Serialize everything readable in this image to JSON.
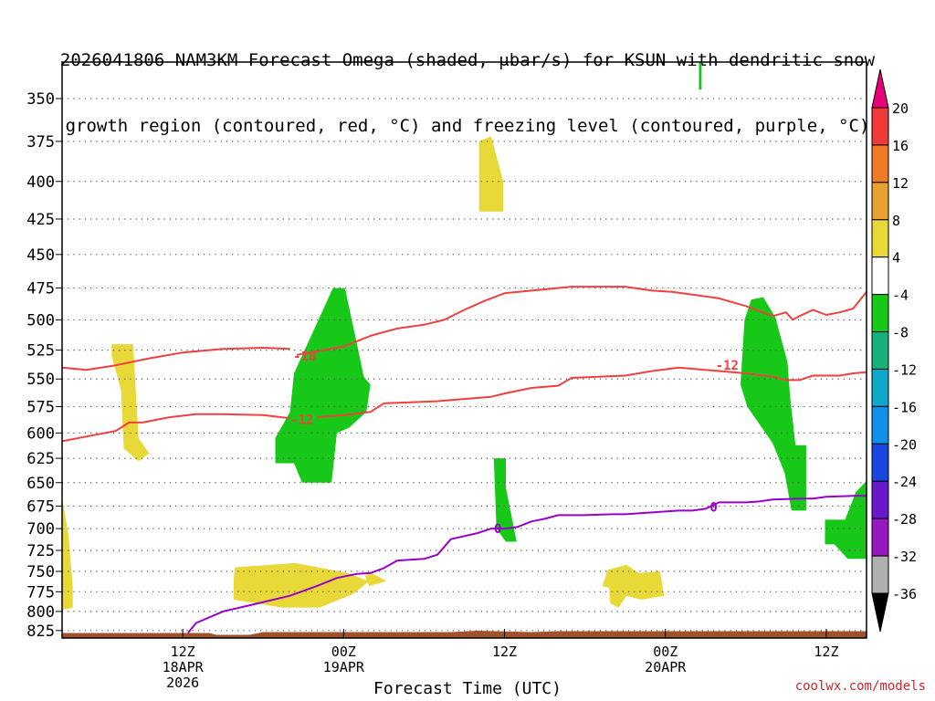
{
  "title": {
    "line1": "2026041806 NAM3KM Forecast Omega (shaded, μbar/s) for KSUN with dendritic snow",
    "line2": "growth region (contoured, red, °C) and freezing level (contoured, purple, °C)"
  },
  "footer": "coolwx.com/models",
  "chart_data": {
    "type": "heatmap",
    "xlabel": "Forecast Time (UTC)",
    "x_range_hours": [
      -9,
      51
    ],
    "y_range_hpa": [
      330,
      835
    ],
    "y_scale": "log-pressure (inverted)",
    "grid": true,
    "y_ticks": [
      350,
      375,
      400,
      425,
      450,
      475,
      500,
      525,
      550,
      575,
      600,
      625,
      650,
      675,
      700,
      725,
      750,
      775,
      800,
      825
    ],
    "x_ticks": [
      {
        "hour": 0,
        "lines": [
          "12Z",
          "18APR",
          "2026"
        ]
      },
      {
        "hour": 12,
        "lines": [
          "00Z",
          "19APR"
        ]
      },
      {
        "hour": 24,
        "lines": [
          "12Z"
        ]
      },
      {
        "hour": 36,
        "lines": [
          "00Z",
          "20APR"
        ]
      },
      {
        "hour": 48,
        "lines": [
          "12Z"
        ]
      }
    ],
    "colorbar": {
      "labels": [
        "20",
        "16",
        "12",
        "8",
        "4",
        "-4",
        "-8",
        "-12",
        "-16",
        "-20",
        "-24",
        "-28",
        "-32",
        "-36"
      ],
      "colors": [
        "#e8007a",
        "#f03a3a",
        "#f07a28",
        "#e8a030",
        "#e8d838",
        "#ffffff",
        "#18c818",
        "#18b07a",
        "#10a8c8",
        "#1090e8",
        "#1848e0",
        "#6818c8",
        "#9818c0",
        "#b0b0b0",
        "#000000"
      ]
    },
    "omega_regions": [
      {
        "name": "rising",
        "color": "#18c818",
        "points": [
          [
            11.2,
            475
          ],
          [
            12.1,
            475
          ],
          [
            12.9,
            515
          ],
          [
            13.5,
            548
          ],
          [
            14.0,
            555
          ],
          [
            13.7,
            580
          ],
          [
            12.4,
            595
          ],
          [
            11.5,
            600
          ],
          [
            11.1,
            650
          ],
          [
            8.9,
            650
          ],
          [
            8.3,
            630
          ],
          [
            6.9,
            630
          ],
          [
            6.9,
            605
          ],
          [
            8.0,
            580
          ],
          [
            8.3,
            545
          ],
          [
            9.5,
            515
          ]
        ]
      },
      {
        "name": "rising",
        "color": "#18c818",
        "points": [
          [
            42.4,
            484
          ],
          [
            43.3,
            482
          ],
          [
            44.2,
            498
          ],
          [
            45.1,
            535
          ],
          [
            45.3,
            566
          ],
          [
            45.7,
            612
          ],
          [
            46.5,
            612
          ],
          [
            46.5,
            680
          ],
          [
            45.4,
            680
          ],
          [
            44.9,
            640
          ],
          [
            44.0,
            610
          ],
          [
            42.1,
            575
          ],
          [
            41.6,
            555
          ],
          [
            41.9,
            500
          ]
        ]
      },
      {
        "name": "rising",
        "color": "#18c818",
        "points": [
          [
            23.2,
            625
          ],
          [
            24.1,
            625
          ],
          [
            24.1,
            655
          ],
          [
            24.9,
            715
          ],
          [
            24.1,
            715
          ],
          [
            23.4,
            700
          ]
        ]
      },
      {
        "name": "rising",
        "color": "#18c818",
        "points": [
          [
            47.9,
            690
          ],
          [
            49.4,
            690
          ],
          [
            50.2,
            660
          ],
          [
            51.0,
            648
          ],
          [
            51.0,
            735
          ],
          [
            49.6,
            735
          ],
          [
            48.6,
            718
          ],
          [
            47.9,
            718
          ]
        ]
      },
      {
        "name": "rising",
        "color": "#18c818",
        "points": [
          [
            38.5,
            328
          ],
          [
            38.7,
            328
          ],
          [
            38.7,
            345
          ],
          [
            38.5,
            345
          ]
        ]
      },
      {
        "name": "sinking",
        "color": "#e8d838",
        "points": [
          [
            -5.3,
            520
          ],
          [
            -3.7,
            520
          ],
          [
            -3.3,
            605
          ],
          [
            -2.5,
            620
          ],
          [
            -3.3,
            628
          ],
          [
            -4.4,
            615
          ],
          [
            -4.6,
            560
          ],
          [
            -5.3,
            530
          ]
        ]
      },
      {
        "name": "sinking",
        "color": "#e8d838",
        "points": [
          [
            3.9,
            745
          ],
          [
            8.4,
            740
          ],
          [
            12.3,
            752
          ],
          [
            13.9,
            762
          ],
          [
            12.7,
            778
          ],
          [
            10.2,
            795
          ],
          [
            7.4,
            795
          ],
          [
            3.8,
            785
          ],
          [
            3.8,
            760
          ]
        ]
      },
      {
        "name": "sinking",
        "color": "#e8d838",
        "points": [
          [
            13.6,
            755
          ],
          [
            14.1,
            752
          ],
          [
            15.2,
            762
          ],
          [
            13.9,
            768
          ]
        ]
      },
      {
        "name": "sinking",
        "color": "#e8d838",
        "points": [
          [
            22.1,
            375
          ],
          [
            23.0,
            372
          ],
          [
            23.9,
            400
          ],
          [
            23.9,
            420
          ],
          [
            22.1,
            420
          ]
        ]
      },
      {
        "name": "sinking",
        "color": "#e8d838",
        "points": [
          [
            31.7,
            748
          ],
          [
            33.1,
            742
          ],
          [
            34.0,
            752
          ],
          [
            35.6,
            750
          ],
          [
            35.9,
            780
          ],
          [
            34.2,
            785
          ],
          [
            33.1,
            780
          ],
          [
            32.5,
            795
          ],
          [
            31.9,
            790
          ],
          [
            31.8,
            770
          ],
          [
            31.3,
            768
          ]
        ]
      },
      {
        "name": "sinking",
        "color": "#e8d838",
        "points": [
          [
            -9.0,
            665
          ],
          [
            -8.5,
            710
          ],
          [
            -8.2,
            770
          ],
          [
            -8.2,
            795
          ],
          [
            -9.0,
            798
          ]
        ]
      }
    ],
    "contours": [
      {
        "name": "-18",
        "color": "#f04040",
        "points": [
          [
            -9,
            540
          ],
          [
            -7.2,
            542
          ],
          [
            -5,
            538
          ],
          [
            -2.5,
            532
          ],
          [
            0,
            527
          ],
          [
            3,
            524
          ],
          [
            6,
            523
          ],
          [
            8,
            524
          ]
        ]
      },
      {
        "name": "-18",
        "color": "#f04040",
        "points": [
          [
            8.5,
            529
          ],
          [
            10.5,
            525
          ],
          [
            12,
            522
          ],
          [
            14,
            513
          ],
          [
            16,
            507
          ],
          [
            18,
            504
          ],
          [
            19.5,
            500
          ],
          [
            21,
            492
          ],
          [
            22.5,
            485
          ],
          [
            24,
            479
          ],
          [
            26,
            477
          ],
          [
            27,
            476
          ],
          [
            29,
            474
          ],
          [
            31,
            474
          ],
          [
            33,
            474
          ],
          [
            35,
            477
          ],
          [
            36.5,
            478
          ],
          [
            38,
            480
          ],
          [
            40,
            483
          ],
          [
            42,
            489
          ],
          [
            44,
            497
          ],
          [
            45,
            494
          ],
          [
            45.5,
            500
          ],
          [
            46,
            497
          ],
          [
            47,
            492
          ],
          [
            48,
            496
          ],
          [
            49,
            494
          ],
          [
            50,
            491
          ],
          [
            51,
            478
          ]
        ]
      },
      {
        "name": "-12",
        "color": "#f04040",
        "points": [
          [
            -9,
            608
          ],
          [
            -7,
            603
          ],
          [
            -5,
            598
          ],
          [
            -4,
            590
          ],
          [
            -3,
            590
          ],
          [
            -1,
            585
          ],
          [
            1,
            582
          ],
          [
            3,
            582
          ],
          [
            6,
            583
          ],
          [
            8,
            586
          ]
        ]
      },
      {
        "name": "-12",
        "color": "#f04040",
        "points": [
          [
            10,
            585
          ],
          [
            12,
            583
          ],
          [
            14,
            580
          ],
          [
            15,
            572
          ],
          [
            17,
            571
          ],
          [
            19,
            570
          ],
          [
            21,
            568
          ],
          [
            23,
            566
          ],
          [
            24,
            563
          ],
          [
            26,
            558
          ],
          [
            28,
            556
          ],
          [
            29,
            549
          ],
          [
            31,
            548
          ],
          [
            33,
            547
          ],
          [
            35,
            543
          ],
          [
            37,
            540
          ],
          [
            38,
            541
          ],
          [
            40,
            543
          ],
          [
            42,
            545
          ],
          [
            44,
            548
          ],
          [
            45,
            551
          ],
          [
            46,
            551
          ],
          [
            47,
            547
          ],
          [
            49,
            547
          ],
          [
            50,
            545
          ],
          [
            51,
            544
          ]
        ]
      },
      {
        "name": "0",
        "color": "#9900cc",
        "points": [
          [
            0.4,
            828
          ],
          [
            1,
            815
          ],
          [
            3,
            800
          ],
          [
            5,
            792
          ],
          [
            8,
            780
          ],
          [
            10,
            768
          ],
          [
            11.5,
            758
          ],
          [
            13,
            753
          ],
          [
            14,
            752
          ],
          [
            15,
            746
          ],
          [
            16,
            737
          ],
          [
            18,
            735
          ],
          [
            19,
            730
          ],
          [
            20,
            712
          ],
          [
            22,
            705
          ],
          [
            23,
            700
          ],
          [
            24,
            700
          ],
          [
            25,
            698
          ],
          [
            26,
            692
          ],
          [
            27,
            689
          ],
          [
            28,
            685
          ],
          [
            30,
            685
          ],
          [
            32,
            684
          ],
          [
            33,
            684
          ],
          [
            35,
            682
          ],
          [
            37,
            680
          ],
          [
            38,
            680
          ],
          [
            39,
            678
          ],
          [
            40,
            671
          ],
          [
            41,
            671
          ],
          [
            42,
            671
          ],
          [
            43,
            670
          ],
          [
            44,
            668
          ],
          [
            46,
            667
          ],
          [
            47,
            667
          ],
          [
            48,
            665
          ],
          [
            50,
            664
          ],
          [
            51,
            664
          ]
        ]
      }
    ],
    "contour_labels": [
      {
        "text": "-18",
        "x": 9.1,
        "y": 530,
        "color": "#f04040"
      },
      {
        "text": "-12",
        "x": 8.9,
        "y": 587,
        "color": "#f04040"
      },
      {
        "text": "-12",
        "x": 40.6,
        "y": 538,
        "color": "#f04040"
      },
      {
        "text": "0",
        "x": 23.5,
        "y": 700,
        "color": "#9900cc"
      },
      {
        "text": "0",
        "x": 39.6,
        "y": 676,
        "color": "#9900cc"
      }
    ],
    "terrain": {
      "color": "#a0522d",
      "top_hpa": 827
    }
  }
}
